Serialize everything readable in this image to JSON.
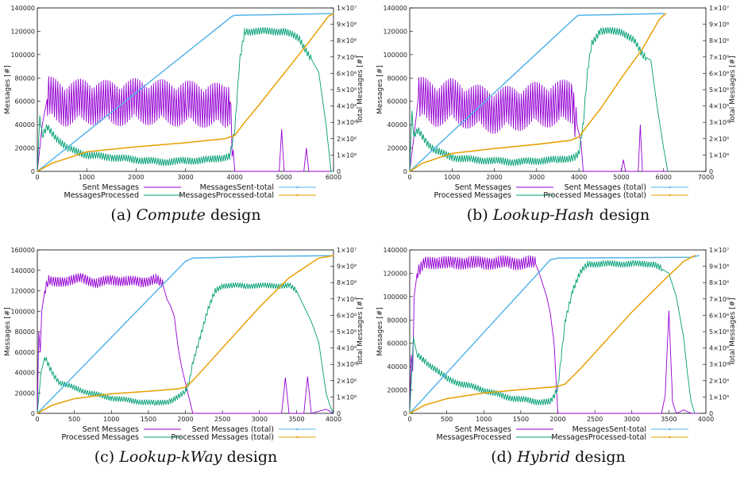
{
  "chart_data": [
    {
      "type": "line",
      "caption": {
        "prefix": "(a)",
        "name": "Compute",
        "suffix": "design"
      },
      "xlabel": "",
      "ylabel": "Messages [#]",
      "y2label": "Total Messages [#]",
      "xlim": [
        0,
        6000
      ],
      "ylim": [
        0,
        140000
      ],
      "y2lim": [
        0,
        10000000
      ],
      "xticks": [
        "0",
        "1000",
        "2000",
        "3000",
        "4000",
        "5000",
        "6000"
      ],
      "yticks": [
        "0",
        "20000",
        "40000",
        "60000",
        "80000",
        "100000",
        "120000",
        "140000"
      ],
      "y2ticks": [
        "0",
        "1×10⁶",
        "2×10⁶",
        "3×10⁶",
        "4×10⁶",
        "5×10⁶",
        "6×10⁶",
        "7×10⁶",
        "8×10⁶",
        "9×10⁶",
        "1×10⁷"
      ],
      "series": [
        {
          "name": "Sent Messages",
          "color": "#9400d3",
          "axis": "left",
          "x": [
            0,
            100,
            200,
            400,
            600,
            800,
            1000,
            1500,
            2000,
            2500,
            3000,
            3500,
            3800,
            3900,
            4000,
            4010,
            4500,
            4900,
            4950,
            5000,
            5400,
            5450,
            5500,
            6000
          ],
          "y": [
            0,
            40000,
            62000,
            60000,
            58000,
            59000,
            60000,
            58000,
            60000,
            59000,
            58000,
            57000,
            55000,
            60000,
            0,
            0,
            0,
            0,
            36000,
            0,
            0,
            20000,
            0,
            0
          ],
          "osc": {
            "from": 200,
            "to": 3950,
            "amp": 20000
          }
        },
        {
          "name": "MessagesProcessed",
          "color": "#009e73",
          "axis": "left",
          "x": [
            0,
            50,
            100,
            200,
            400,
            600,
            1000,
            1500,
            2000,
            2500,
            3000,
            3500,
            3900,
            4000,
            4100,
            4200,
            4300,
            5000,
            5300,
            5500,
            5700,
            5850,
            5950,
            6000
          ],
          "y": [
            0,
            48000,
            30000,
            38000,
            28000,
            20000,
            14000,
            12000,
            10000,
            8000,
            9000,
            10000,
            13000,
            35000,
            95000,
            120000,
            120000,
            120000,
            114000,
            100000,
            85000,
            40000,
            0,
            0
          ],
          "osc": {
            "from": 50,
            "to": 5550,
            "amp": 3500
          }
        },
        {
          "name": "MessagesSent-total",
          "color": "#56b4e9",
          "axis": "right",
          "x": [
            0,
            3950,
            4000,
            5900,
            6000
          ],
          "y": [
            0,
            9500000,
            9550000,
            9650000,
            9650000
          ]
        },
        {
          "name": "MessagesProcessed-total",
          "color": "#e69f00",
          "axis": "right",
          "x": [
            0,
            300,
            1000,
            2000,
            3000,
            3800,
            4000,
            4200,
            4500,
            5000,
            5500,
            5900,
            6000
          ],
          "y": [
            0,
            500000,
            1200000,
            1500000,
            1750000,
            2000000,
            2200000,
            3000000,
            4100000,
            6000000,
            7900000,
            9500000,
            9650000
          ]
        }
      ]
    },
    {
      "type": "line",
      "caption": {
        "prefix": "(b)",
        "name": "Lookup-Hash",
        "suffix": "design"
      },
      "xlabel": "",
      "ylabel": "Messages [#]",
      "y2label": "Total Messages [#]",
      "xlim": [
        0,
        7000
      ],
      "ylim": [
        0,
        140000
      ],
      "y2lim": [
        0,
        10000000
      ],
      "xticks": [
        "0",
        "1000",
        "2000",
        "3000",
        "4000",
        "5000",
        "6000",
        "7000"
      ],
      "yticks": [
        "0",
        "20000",
        "40000",
        "60000",
        "80000",
        "100000",
        "120000",
        "140000"
      ],
      "y2ticks": [
        "0",
        "1×10⁶",
        "2×10⁶",
        "3×10⁶",
        "4×10⁶",
        "5×10⁶",
        "6×10⁶",
        "7×10⁶",
        "8×10⁶",
        "9×10⁶",
        "1×10⁷"
      ],
      "series": [
        {
          "name": "Sent Messages",
          "color": "#9400d3",
          "axis": "left",
          "x": [
            0,
            100,
            200,
            400,
            600,
            1000,
            1500,
            2000,
            2500,
            3000,
            3500,
            3850,
            3950,
            4050,
            4100,
            4500,
            5000,
            5050,
            5100,
            5400,
            5450,
            5500,
            6000,
            6100
          ],
          "y": [
            0,
            30000,
            62000,
            60000,
            58000,
            60000,
            55000,
            52000,
            54000,
            57000,
            58000,
            60000,
            40000,
            25000,
            0,
            0,
            0,
            10000,
            0,
            0,
            40000,
            0,
            0,
            0
          ],
          "osc": {
            "from": 200,
            "to": 3950,
            "amp": 20000
          }
        },
        {
          "name": "Processed Messages",
          "color": "#009e73",
          "axis": "left",
          "x": [
            0,
            50,
            100,
            200,
            400,
            600,
            1000,
            1500,
            2000,
            2500,
            3000,
            3500,
            3900,
            4000,
            4100,
            4200,
            4300,
            4500,
            5000,
            5300,
            5500,
            5700,
            5850,
            6000,
            6100
          ],
          "y": [
            0,
            50000,
            30000,
            35000,
            25000,
            18000,
            12000,
            10000,
            9000,
            8000,
            9000,
            10000,
            12000,
            15000,
            40000,
            85000,
            110000,
            120000,
            120000,
            112000,
            100000,
            95000,
            55000,
            20000,
            0
          ],
          "osc": {
            "from": 50,
            "to": 5600,
            "amp": 3500
          }
        },
        {
          "name": "Sent Messages (total)",
          "color": "#56b4e9",
          "axis": "right",
          "x": [
            0,
            3950,
            4000,
            5900,
            6000
          ],
          "y": [
            0,
            9500000,
            9550000,
            9650000,
            9650000
          ]
        },
        {
          "name": "Processed Messages (total)",
          "color": "#e69f00",
          "axis": "right",
          "x": [
            0,
            300,
            1000,
            2000,
            3000,
            3800,
            4000,
            4200,
            4500,
            5000,
            5500,
            5900,
            6050
          ],
          "y": [
            0,
            500000,
            1100000,
            1400000,
            1650000,
            1900000,
            2100000,
            2800000,
            3800000,
            5700000,
            7500000,
            9300000,
            9650000
          ]
        }
      ]
    },
    {
      "type": "line",
      "caption": {
        "prefix": "(c)",
        "name": "Lookup-kWay",
        "suffix": "design"
      },
      "xlabel": "",
      "ylabel": "Messages [#]",
      "y2label": "Total Messages [#]",
      "xlim": [
        0,
        4000
      ],
      "ylim": [
        0,
        160000
      ],
      "y2lim": [
        0,
        10000000
      ],
      "xticks": [
        "0",
        "500",
        "1000",
        "1500",
        "2000",
        "2500",
        "3000",
        "3500",
        "4000"
      ],
      "yticks": [
        "0",
        "20000",
        "40000",
        "60000",
        "80000",
        "100000",
        "120000",
        "140000",
        "160000"
      ],
      "y2ticks": [
        "0",
        "1×10⁶",
        "2×10⁶",
        "3×10⁶",
        "4×10⁶",
        "5×10⁶",
        "6×10⁶",
        "7×10⁶",
        "8×10⁶",
        "9×10⁶",
        "1×10⁷"
      ],
      "series": [
        {
          "name": "Sent Messages",
          "color": "#9400d3",
          "axis": "left",
          "x": [
            0,
            20,
            40,
            60,
            100,
            150,
            200,
            400,
            600,
            800,
            1000,
            1200,
            1400,
            1600,
            1700,
            1750,
            1800,
            1850,
            1900,
            1950,
            2000,
            2050,
            2100,
            3000,
            3300,
            3350,
            3400,
            3600,
            3650,
            3700,
            3900,
            4000
          ],
          "y": [
            0,
            80000,
            60000,
            100000,
            120000,
            130000,
            128000,
            130000,
            132000,
            128000,
            130000,
            130000,
            128000,
            132000,
            125000,
            112000,
            105000,
            95000,
            65000,
            45000,
            30000,
            15000,
            0,
            0,
            0,
            35000,
            0,
            0,
            36000,
            0,
            4000,
            0
          ],
          "osc": {
            "from": 100,
            "to": 1700,
            "amp": 5500
          }
        },
        {
          "name": "Processed Messages",
          "color": "#009e73",
          "axis": "left",
          "x": [
            0,
            50,
            100,
            200,
            300,
            500,
            700,
            1000,
            1300,
            1600,
            1800,
            1950,
            2000,
            2050,
            2100,
            2200,
            2300,
            2400,
            2500,
            2800,
            3100,
            3400,
            3500,
            3600,
            3700,
            3800,
            3850,
            3900,
            3950,
            4000
          ],
          "y": [
            0,
            40000,
            55000,
            40000,
            30000,
            25000,
            20000,
            15000,
            12000,
            10000,
            12000,
            18000,
            22000,
            30000,
            50000,
            75000,
            100000,
            120000,
            125000,
            125000,
            125000,
            125000,
            120000,
            105000,
            90000,
            70000,
            45000,
            20000,
            8000,
            0
          ],
          "osc": {
            "from": 100,
            "to": 3500,
            "amp": 3000
          }
        },
        {
          "name": "Sent Messages (total)",
          "color": "#56b4e9",
          "axis": "right",
          "x": [
            0,
            2000,
            2100,
            3000,
            4000
          ],
          "y": [
            0,
            9300000,
            9500000,
            9600000,
            9650000
          ]
        },
        {
          "name": "Processed Messages (total)",
          "color": "#e69f00",
          "axis": "right",
          "x": [
            0,
            200,
            500,
            1000,
            1500,
            1900,
            2000,
            2100,
            2300,
            2600,
            3000,
            3400,
            3800,
            4000
          ],
          "y": [
            0,
            500000,
            900000,
            1200000,
            1350000,
            1500000,
            1600000,
            2000000,
            3000000,
            4500000,
            6500000,
            8300000,
            9500000,
            9650000
          ]
        }
      ]
    },
    {
      "type": "line",
      "caption": {
        "prefix": "(d)",
        "name": "Hybrid",
        "suffix": "design"
      },
      "xlabel": "",
      "ylabel": "Messages [#]",
      "y2label": "Total Messages [#]",
      "xlim": [
        0,
        4000
      ],
      "ylim": [
        0,
        140000
      ],
      "y2lim": [
        0,
        10000000
      ],
      "xticks": [
        "0",
        "500",
        "1000",
        "1500",
        "2000",
        "2500",
        "3000",
        "3500",
        "4000"
      ],
      "yticks": [
        "0",
        "20000",
        "40000",
        "60000",
        "80000",
        "100000",
        "120000",
        "140000"
      ],
      "y2ticks": [
        "0",
        "1×10⁶",
        "2×10⁶",
        "3×10⁶",
        "4×10⁶",
        "5×10⁶",
        "6×10⁶",
        "7×10⁶",
        "8×10⁶",
        "9×10⁶",
        "1×10⁷"
      ],
      "series": [
        {
          "name": "Sent Messages",
          "color": "#9400d3",
          "axis": "left",
          "x": [
            0,
            20,
            40,
            60,
            100,
            200,
            400,
            600,
            800,
            1000,
            1200,
            1400,
            1600,
            1700,
            1750,
            1800,
            1850,
            1900,
            1950,
            2000,
            2050,
            3000,
            3400,
            3450,
            3500,
            3550,
            3600,
            3700,
            3800,
            3900
          ],
          "y": [
            0,
            50000,
            36000,
            100000,
            120000,
            128000,
            130000,
            128000,
            130000,
            128000,
            130000,
            128000,
            130000,
            128000,
            120000,
            110000,
            100000,
            85000,
            60000,
            0,
            0,
            0,
            0,
            15000,
            88000,
            10000,
            0,
            3000,
            0,
            0
          ],
          "osc": {
            "from": 100,
            "to": 1700,
            "amp": 6000
          }
        },
        {
          "name": "MessagesProcessed",
          "color": "#009e73",
          "axis": "left",
          "x": [
            0,
            50,
            100,
            200,
            300,
            400,
            500,
            700,
            900,
            1100,
            1300,
            1500,
            1700,
            1900,
            1950,
            2000,
            2050,
            2100,
            2200,
            2300,
            2400,
            2600,
            3000,
            3300,
            3500,
            3600,
            3700,
            3750,
            3800,
            3850
          ],
          "y": [
            0,
            65000,
            50000,
            45000,
            40000,
            35000,
            30000,
            25000,
            22000,
            18000,
            14000,
            12000,
            10000,
            10000,
            14000,
            22000,
            50000,
            80000,
            105000,
            120000,
            128000,
            128000,
            128000,
            128000,
            120000,
            100000,
            65000,
            35000,
            10000,
            0
          ],
          "osc": {
            "from": 100,
            "to": 3400,
            "amp": 3000
          }
        },
        {
          "name": "MessagesSent-total",
          "color": "#56b4e9",
          "axis": "right",
          "x": [
            0,
            1900,
            2000,
            3800,
            3900
          ],
          "y": [
            0,
            9400000,
            9500000,
            9550000,
            9650000
          ]
        },
        {
          "name": "MessagesProcessed-total",
          "color": "#e69f00",
          "axis": "right",
          "x": [
            0,
            200,
            500,
            1000,
            1500,
            1900,
            2000,
            2100,
            2300,
            2600,
            3000,
            3400,
            3700,
            3850
          ],
          "y": [
            0,
            500000,
            900000,
            1250000,
            1450000,
            1600000,
            1650000,
            1800000,
            2700000,
            4200000,
            6200000,
            8000000,
            9300000,
            9650000
          ]
        }
      ]
    }
  ]
}
